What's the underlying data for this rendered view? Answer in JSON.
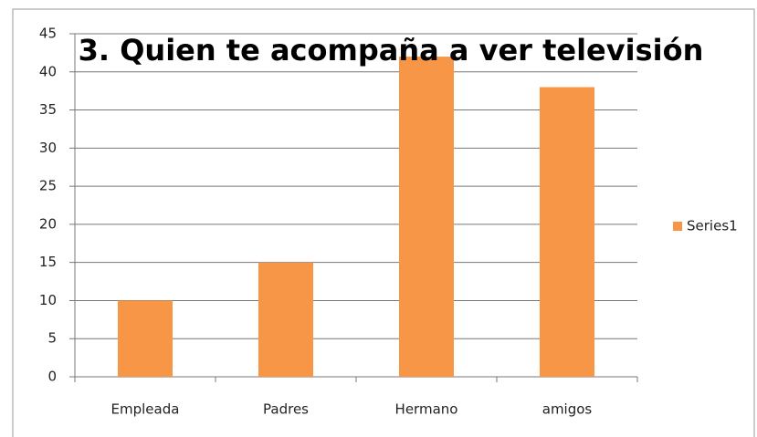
{
  "chart_data": {
    "type": "bar",
    "title": "3. Quien te acompaña a ver televisión",
    "categories": [
      "Empleada",
      "Padres",
      "Hermano",
      "amigos"
    ],
    "series": [
      {
        "name": "Series1",
        "color": "#f79646",
        "values": [
          10,
          15,
          42,
          38
        ]
      }
    ],
    "ylim": [
      0,
      45
    ],
    "yticks": [
      0,
      5,
      10,
      15,
      20,
      25,
      30,
      35,
      40,
      45
    ],
    "grid": true,
    "legend": "right"
  }
}
